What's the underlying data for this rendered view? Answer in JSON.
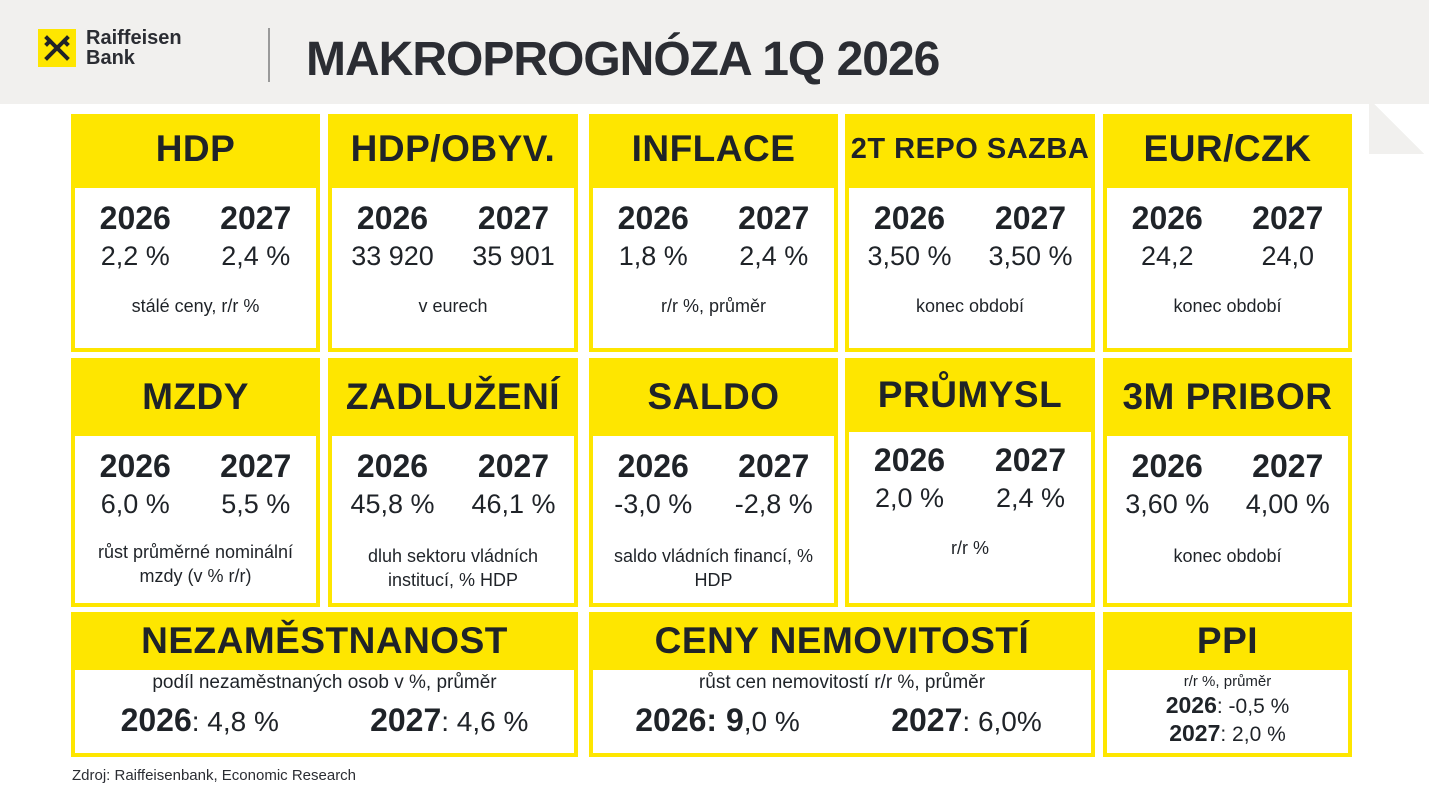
{
  "header": {
    "logo_line1": "Raiffeisen",
    "logo_line2": "Bank",
    "title": "MAKROPROGNÓZA 1Q 2026"
  },
  "cards": [
    {
      "title": "HDP",
      "year1": "2026",
      "year2": "2027",
      "v1": "2,2 %",
      "v2": "2,4 %",
      "note": "stálé ceny, r/r %"
    },
    {
      "title": "HDP/OBYV.",
      "year1": "2026",
      "year2": "2027",
      "v1": "33 920",
      "v2": "35 901",
      "note": "v eurech"
    },
    {
      "title": "INFLACE",
      "year1": "2026",
      "year2": "2027",
      "v1": "1,8 %",
      "v2": "2,4 %",
      "note": "r/r %, průměr"
    },
    {
      "title": "2T REPO SAZBA",
      "year1": "2026",
      "year2": "2027",
      "v1": "3,50 %",
      "v2": "3,50 %",
      "note": "konec období"
    },
    {
      "title": "EUR/CZK",
      "year1": "2026",
      "year2": "2027",
      "v1": "24,2",
      "v2": "24,0",
      "note": "konec období"
    },
    {
      "title": "MZDY",
      "year1": "2026",
      "year2": "2027",
      "v1": "6,0 %",
      "v2": "5,5 %",
      "note": "růst průměrné nominální mzdy (v % r/r)"
    },
    {
      "title": "ZADLUŽENÍ",
      "year1": "2026",
      "year2": "2027",
      "v1": "45,8 %",
      "v2": "46,1 %",
      "note": "dluh sektoru vládních institucí, % HDP"
    },
    {
      "title": "SALDO",
      "year1": "2026",
      "year2": "2027",
      "v1": "-3,0 %",
      "v2": "-2,8 %",
      "note": "saldo vládních financí, % HDP"
    },
    {
      "title": "PRŮMYSL",
      "year1": "2026",
      "year2": "2027",
      "v1": "2,0 %",
      "v2": "2,4 %",
      "note": "r/r %"
    },
    {
      "title": "3M PRIBOR",
      "year1": "2026",
      "year2": "2027",
      "v1": "3,60 %",
      "v2": "4,00 %",
      "note": "konec období"
    }
  ],
  "wide": [
    {
      "title": "NEZAMĚSTNANOST",
      "note": "podíl nezaměstnaných osob v %, průměr",
      "year1": "2026",
      "v1": ": 4,8 %",
      "year2": "2027",
      "v2": ": 4,6 %"
    },
    {
      "title": "CENY NEMOVITOSTÍ",
      "note": "růst cen nemovitostí r/r %, průměr",
      "year1": "2026",
      "v1_bold": ": 9",
      "v1": ",0 %",
      "year2": "2027",
      "v2": ": 6,0%"
    }
  ],
  "ppi": {
    "title": "PPI",
    "note": "r/r %,  průměr",
    "year1": "2026",
    "v1": ": -0,5 %",
    "year2": "2027",
    "v2": ": 2,0 %"
  },
  "source": "Zdroj: Raiffeisenbank, Economic Research",
  "colors": {
    "accent": "#fee600",
    "text": "#1f2328",
    "header_bg": "#f1f0ee"
  }
}
